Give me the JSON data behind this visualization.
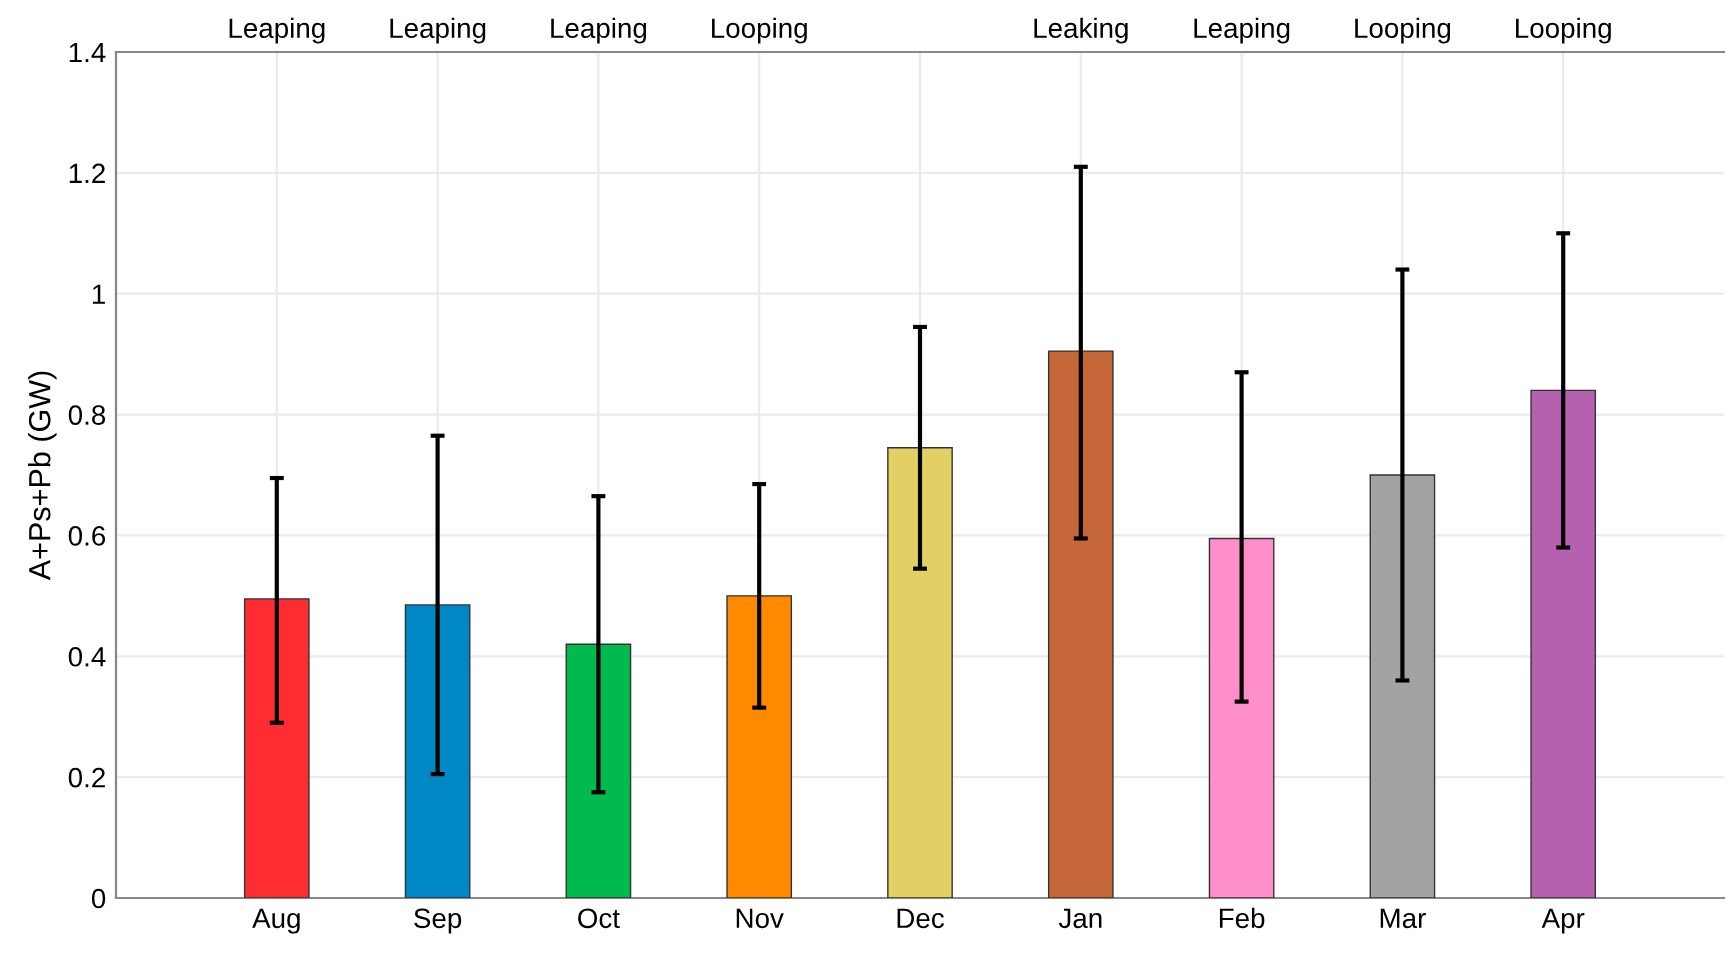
{
  "chart_data": {
    "type": "bar",
    "ylabel": "A+Ps+Pb (GW)",
    "categories": [
      "Aug",
      "Sep",
      "Oct",
      "Nov",
      "Dec",
      "Jan",
      "Feb",
      "Mar",
      "Apr"
    ],
    "values": [
      0.495,
      0.485,
      0.42,
      0.5,
      0.745,
      0.905,
      0.595,
      0.7,
      0.84
    ],
    "colors": [
      "#ff2d32",
      "#0088c6",
      "#00b94f",
      "#ff8a00",
      "#e2d065",
      "#c66739",
      "#ff8fcb",
      "#a3a3a3",
      "#b561b0"
    ],
    "errors": [
      [
        0.29,
        0.695
      ],
      [
        0.205,
        0.765
      ],
      [
        0.175,
        0.665
      ],
      [
        0.315,
        0.685
      ],
      [
        0.545,
        0.945
      ],
      [
        0.595,
        1.21
      ],
      [
        0.325,
        0.87
      ],
      [
        0.36,
        1.04
      ],
      [
        0.58,
        1.1
      ]
    ],
    "annotations": [
      "Leaping",
      "Leaping",
      "Leaping",
      "Looping",
      "Leaking",
      "Leaping",
      "Looping",
      "Looping"
    ],
    "ylim": [
      0,
      1.4
    ],
    "yticks": [
      0,
      0.2,
      0.4,
      0.6,
      0.8,
      1,
      1.2,
      1.4
    ],
    "grid": true,
    "legend": false
  }
}
